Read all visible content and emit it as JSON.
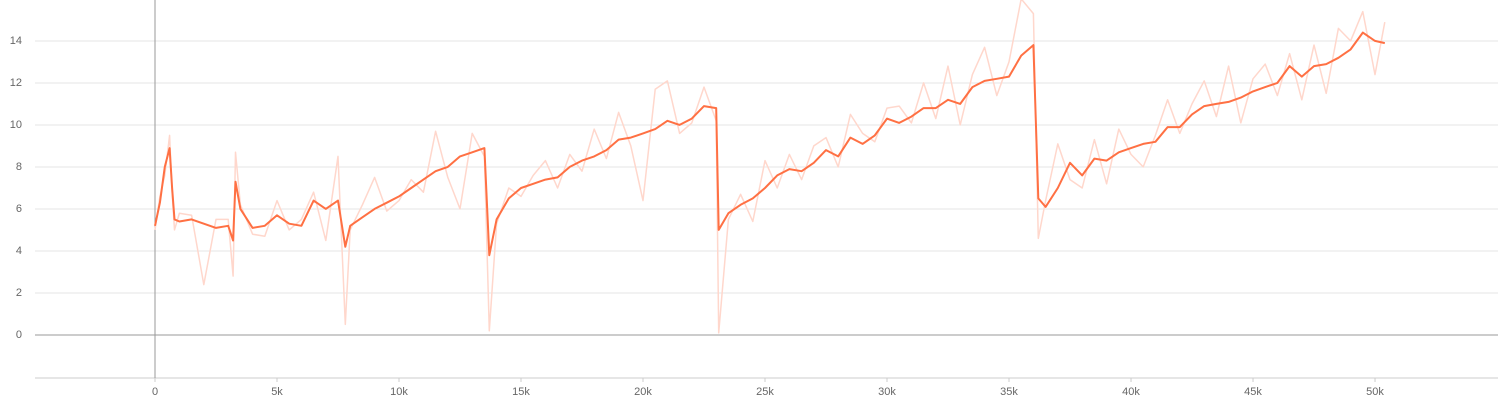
{
  "chart_data": {
    "type": "line",
    "x": [
      0,
      200,
      400,
      600,
      700,
      800,
      1000,
      1500,
      2000,
      2500,
      3000,
      3200,
      3300,
      3500,
      4000,
      4500,
      5000,
      5500,
      6000,
      6500,
      7000,
      7500,
      7800,
      8000,
      8500,
      9000,
      9500,
      10000,
      10500,
      11000,
      11500,
      12000,
      12500,
      13000,
      13500,
      13700,
      14000,
      14500,
      15000,
      15500,
      16000,
      16500,
      17000,
      17500,
      18000,
      18500,
      19000,
      19500,
      20000,
      20500,
      21000,
      21500,
      22000,
      22500,
      23000,
      23100,
      23500,
      24000,
      24500,
      25000,
      25500,
      26000,
      26500,
      27000,
      27500,
      28000,
      28500,
      29000,
      29500,
      30000,
      30500,
      31000,
      31500,
      32000,
      32500,
      33000,
      33500,
      34000,
      34500,
      35000,
      35500,
      36000,
      36200,
      36500,
      37000,
      37500,
      38000,
      38500,
      39000,
      39500,
      40000,
      40500,
      41000,
      41500,
      42000,
      42500,
      43000,
      43500,
      44000,
      44500,
      45000,
      45500,
      46000,
      46500,
      47000,
      47500,
      48000,
      48500,
      49000,
      49500,
      50000,
      50400
    ],
    "series": [
      {
        "color": "#ffd7cc",
        "values": [
          5.0,
          6.6,
          7.6,
          9.5,
          6.8,
          5.0,
          5.8,
          5.7,
          2.4,
          5.5,
          5.5,
          2.8,
          8.7,
          6.2,
          4.8,
          4.7,
          6.4,
          5.0,
          5.5,
          6.8,
          4.5,
          8.5,
          0.5,
          5.0,
          6.2,
          7.5,
          5.9,
          6.4,
          7.4,
          6.8,
          9.7,
          7.5,
          6.0,
          9.6,
          8.5,
          0.2,
          5.3,
          7.0,
          6.6,
          7.6,
          8.3,
          7.0,
          8.6,
          7.8,
          9.8,
          8.4,
          10.6,
          9.0,
          6.4,
          11.7,
          12.1,
          9.6,
          10.1,
          11.8,
          10.2,
          0.1,
          5.5,
          6.7,
          5.4,
          8.3,
          7.0,
          8.6,
          7.4,
          9.0,
          9.4,
          8.0,
          10.5,
          9.6,
          9.2,
          10.8,
          10.9,
          10.1,
          12.0,
          10.3,
          12.8,
          10.0,
          12.4,
          13.7,
          11.4,
          13.0,
          16.0,
          15.3,
          4.6,
          6.4,
          9.1,
          7.4,
          7.0,
          9.3,
          7.2,
          9.8,
          8.6,
          8.0,
          9.5,
          11.2,
          9.6,
          11.0,
          12.1,
          10.4,
          12.8,
          10.1,
          12.2,
          12.9,
          11.4,
          13.4,
          11.2,
          13.8,
          11.5,
          14.6,
          14.0,
          15.4,
          12.4,
          14.9
        ]
      },
      {
        "color": "#ff7043",
        "values": [
          5.2,
          6.3,
          8.0,
          8.9,
          7.0,
          5.5,
          5.4,
          5.5,
          5.3,
          5.1,
          5.2,
          4.5,
          7.3,
          6.0,
          5.1,
          5.2,
          5.7,
          5.3,
          5.2,
          6.4,
          6.0,
          6.4,
          4.2,
          5.2,
          5.6,
          6.0,
          6.3,
          6.6,
          7.0,
          7.4,
          7.8,
          8.0,
          8.5,
          8.7,
          8.9,
          3.8,
          5.5,
          6.5,
          7.0,
          7.2,
          7.4,
          7.5,
          8.0,
          8.3,
          8.5,
          8.8,
          9.3,
          9.4,
          9.6,
          9.8,
          10.2,
          10.0,
          10.3,
          10.9,
          10.8,
          5.0,
          5.8,
          6.2,
          6.5,
          7.0,
          7.6,
          7.9,
          7.8,
          8.2,
          8.8,
          8.5,
          9.4,
          9.1,
          9.5,
          10.3,
          10.1,
          10.4,
          10.8,
          10.8,
          11.2,
          11.0,
          11.8,
          12.1,
          12.2,
          12.3,
          13.3,
          13.8,
          6.5,
          6.1,
          7.0,
          8.2,
          7.6,
          8.4,
          8.3,
          8.7,
          8.9,
          9.1,
          9.2,
          9.9,
          9.9,
          10.5,
          10.9,
          11.0,
          11.1,
          11.3,
          11.6,
          11.8,
          12.0,
          12.8,
          12.3,
          12.8,
          12.9,
          13.2,
          13.6,
          14.4,
          14.0,
          13.9
        ]
      }
    ],
    "xlim": [
      -4918,
      55040
    ],
    "ylim": [
      -2.05,
      15.95
    ],
    "xticks": [
      {
        "value": 0,
        "label": "0"
      },
      {
        "value": 5000,
        "label": "5k"
      },
      {
        "value": 10000,
        "label": "10k"
      },
      {
        "value": 15000,
        "label": "15k"
      },
      {
        "value": 20000,
        "label": "20k"
      },
      {
        "value": 25000,
        "label": "25k"
      },
      {
        "value": 30000,
        "label": "30k"
      },
      {
        "value": 35000,
        "label": "35k"
      },
      {
        "value": 40000,
        "label": "40k"
      },
      {
        "value": 45000,
        "label": "45k"
      },
      {
        "value": 50000,
        "label": "50k"
      }
    ],
    "yticks": [
      0,
      2,
      4,
      6,
      8,
      10,
      12,
      14
    ],
    "grid": true
  }
}
